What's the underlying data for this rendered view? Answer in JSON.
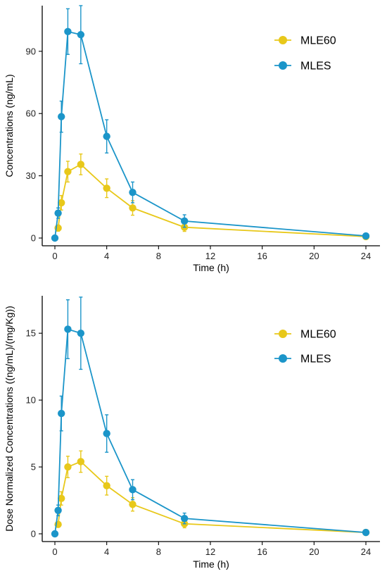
{
  "colors": {
    "MLE60": "#e8c81a",
    "MLES": "#1b95c9"
  },
  "chart_data": [
    {
      "type": "line",
      "xlabel": "Time (h)",
      "ylabel": "Concentrations (ng/mL)",
      "xlim": [
        0,
        24
      ],
      "ylim": [
        0,
        112
      ],
      "xticks": [
        0,
        4,
        8,
        12,
        16,
        20,
        24
      ],
      "yticks": [
        0,
        30,
        60,
        90
      ],
      "grid": false,
      "legend_position": "top-right",
      "series": [
        {
          "name": "MLE60",
          "color": "#e8c81a",
          "x": [
            0.25,
            0.5,
            1,
            2,
            4,
            6,
            10,
            24
          ],
          "y": [
            4.8,
            17,
            32,
            35.5,
            24,
            14.5,
            5.2,
            0.7
          ],
          "err": [
            1.5,
            3.5,
            5,
            5,
            4.5,
            3.5,
            2,
            0.4
          ]
        },
        {
          "name": "MLES",
          "color": "#1b95c9",
          "x": [
            0,
            0.25,
            0.5,
            1,
            2,
            4,
            6,
            10,
            24
          ],
          "y": [
            0,
            12,
            58.5,
            99.5,
            98,
            49,
            22,
            8.2,
            1
          ],
          "err": [
            0,
            2.5,
            7.5,
            11,
            14,
            8,
            5,
            3,
            0.5
          ]
        }
      ]
    },
    {
      "type": "line",
      "xlabel": "Time (h)",
      "ylabel": "Dose Normalized Concentrations ((ng/mL)/(mg/Kg))",
      "xlim": [
        0,
        24
      ],
      "ylim": [
        0,
        17.8
      ],
      "xticks": [
        0,
        4,
        8,
        12,
        16,
        20,
        24
      ],
      "yticks": [
        0,
        5,
        10,
        15
      ],
      "grid": false,
      "legend_position": "top-right",
      "series": [
        {
          "name": "MLE60",
          "color": "#e8c81a",
          "x": [
            0.25,
            0.5,
            1,
            2,
            4,
            6,
            10,
            24
          ],
          "y": [
            0.7,
            2.65,
            5.0,
            5.4,
            3.6,
            2.2,
            0.75,
            0.1
          ],
          "err": [
            0.2,
            0.5,
            0.8,
            0.8,
            0.7,
            0.5,
            0.3,
            0.05
          ]
        },
        {
          "name": "MLES",
          "color": "#1b95c9",
          "x": [
            0,
            0.25,
            0.5,
            1,
            2,
            4,
            6,
            10,
            24
          ],
          "y": [
            0,
            1.75,
            9.0,
            15.3,
            15.0,
            7.5,
            3.3,
            1.15,
            0.1
          ],
          "err": [
            0,
            0.4,
            1.3,
            2.2,
            2.7,
            1.4,
            0.75,
            0.4,
            0.08
          ]
        }
      ]
    }
  ]
}
